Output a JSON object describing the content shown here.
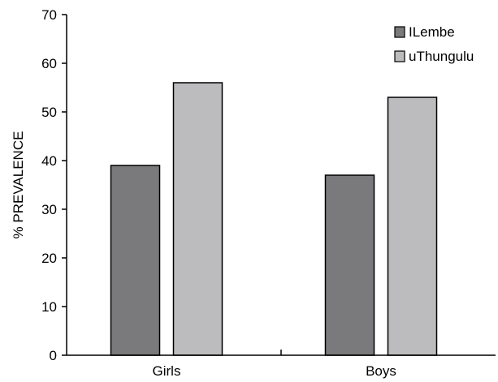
{
  "chart_data": {
    "type": "bar",
    "title": "",
    "xlabel": "",
    "ylabel": "% PREVALENCE",
    "ylim": [
      0,
      70
    ],
    "yticks": [
      "0",
      "10",
      "20",
      "30",
      "40",
      "50",
      "60",
      "70"
    ],
    "categories": [
      "Girls",
      "Boys"
    ],
    "series": [
      {
        "name": "ILembe",
        "values": [
          39,
          37
        ],
        "color": "#7a7a7c"
      },
      {
        "name": "uThungulu",
        "values": [
          56,
          53
        ],
        "color": "#bcbcbf"
      }
    ],
    "grid": false,
    "legend_position": "top-right"
  }
}
